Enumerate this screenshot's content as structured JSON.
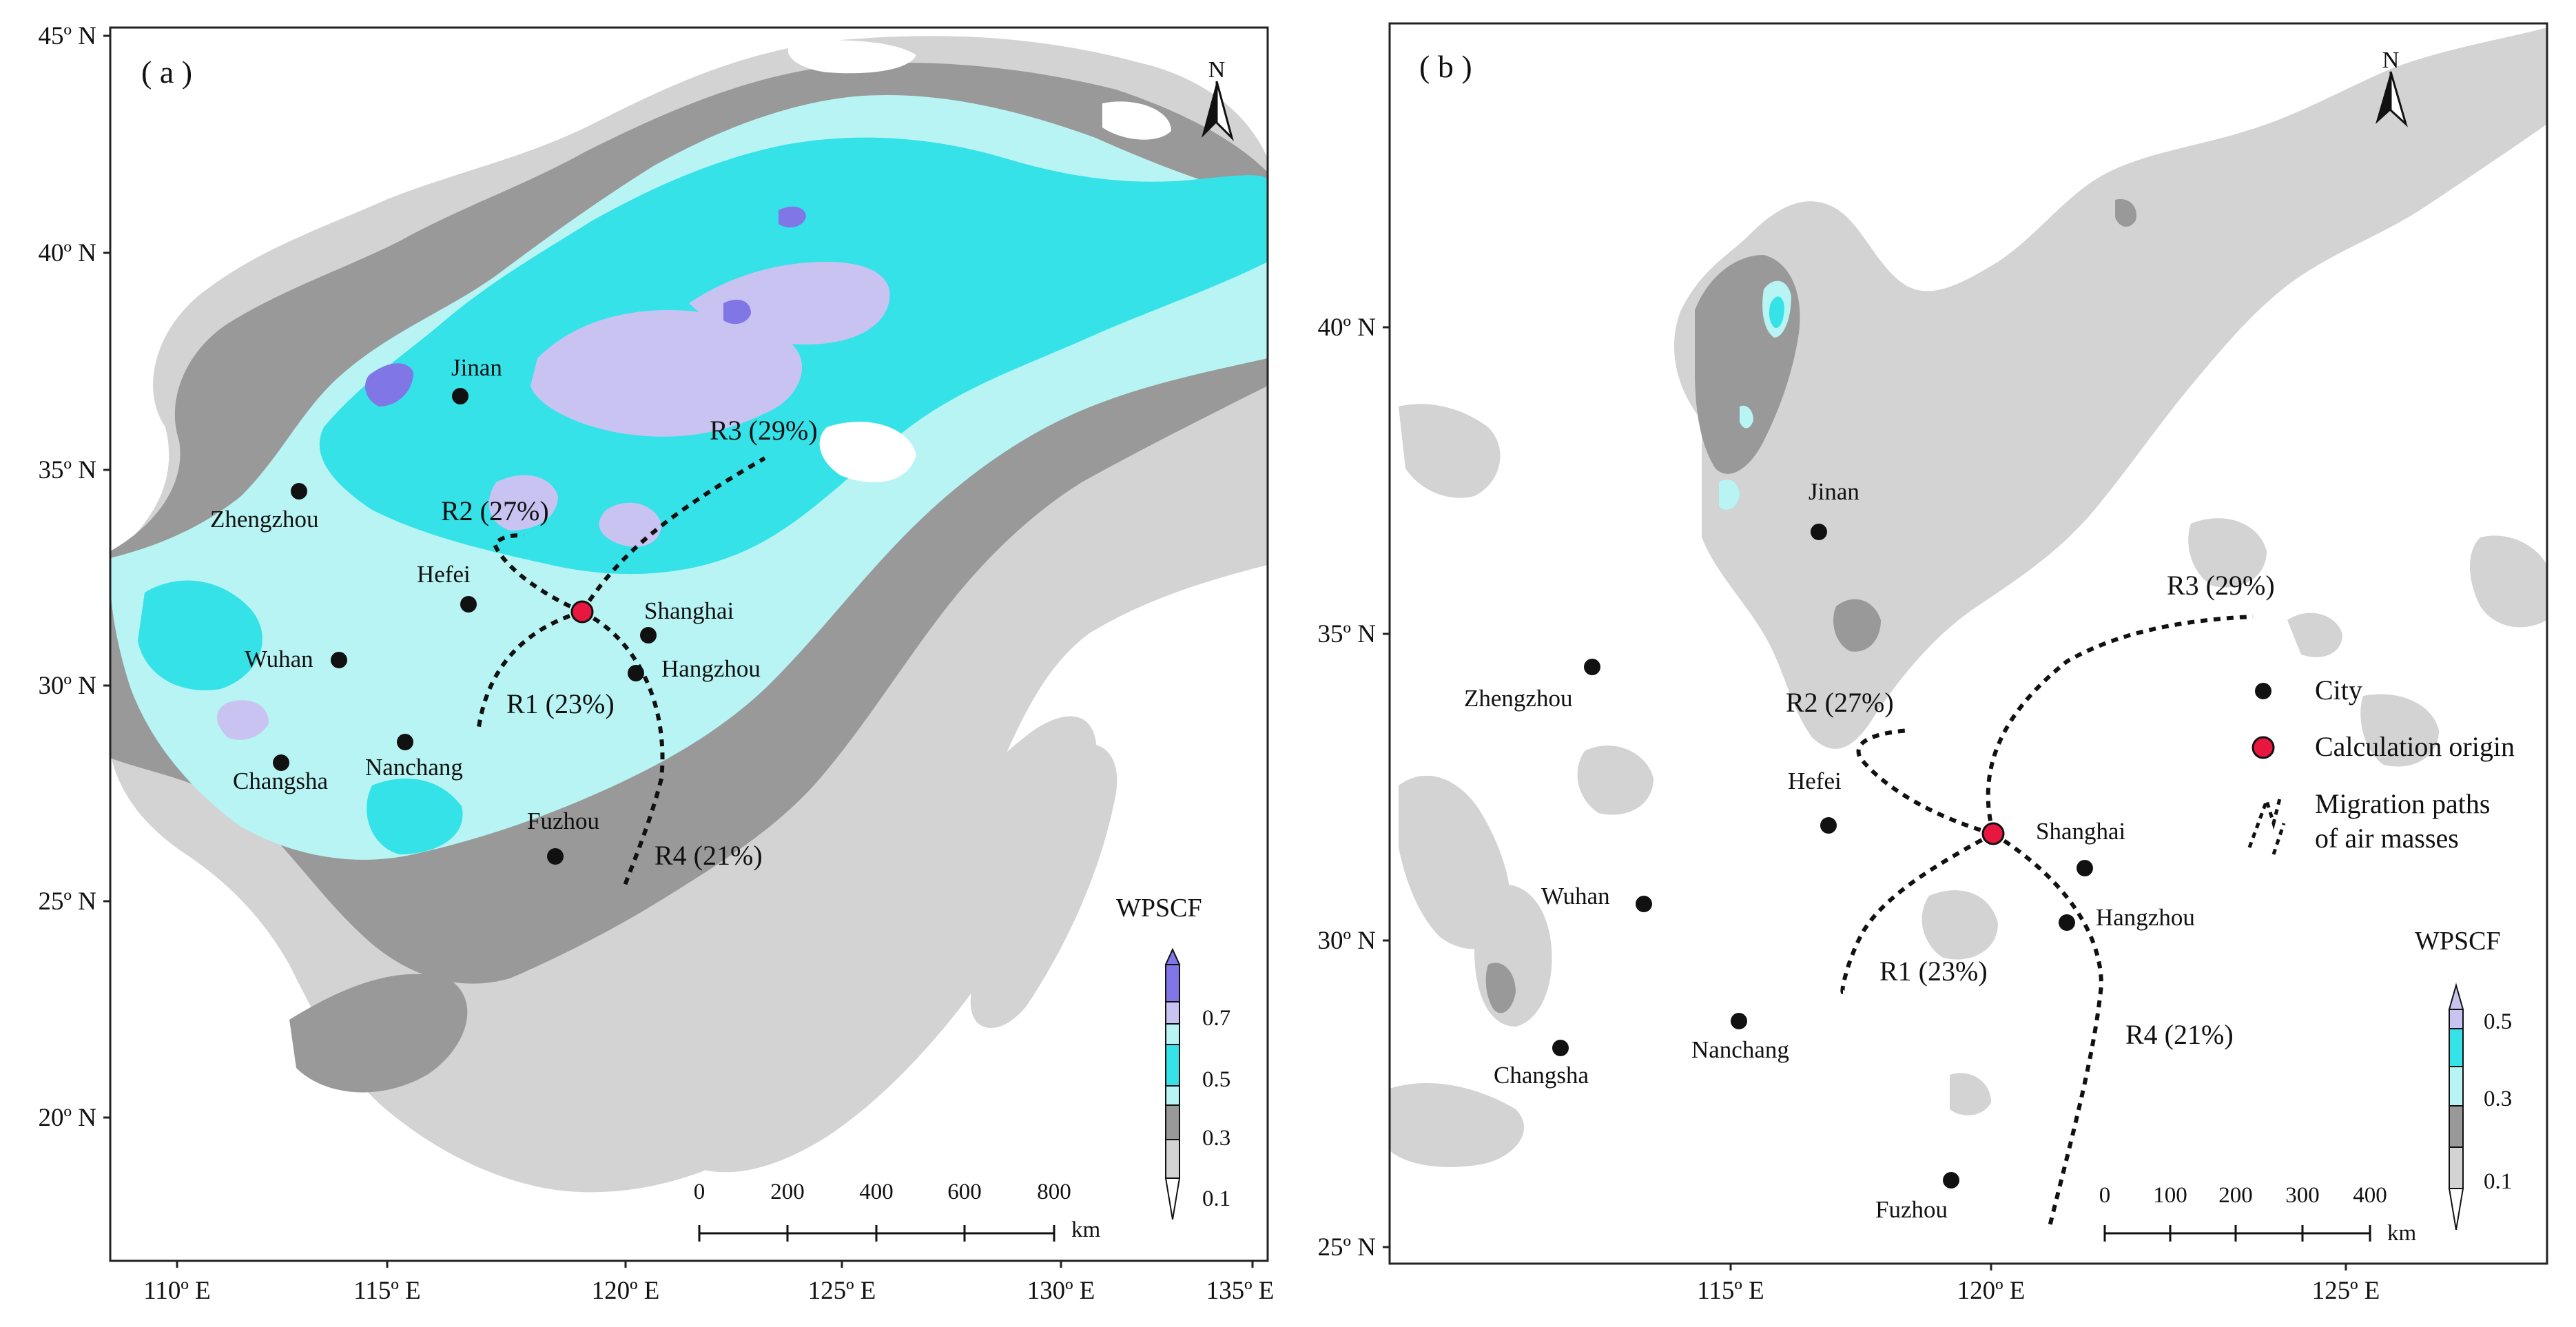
{
  "panel_a": {
    "tag": "( a )",
    "lat_labels": [
      "45º N",
      "40º N",
      "35º N",
      "30º N",
      "25º N",
      "20º N"
    ],
    "lon_labels": [
      "110º E",
      "115º E",
      "120º E",
      "125º E",
      "130º E",
      "135º E"
    ],
    "cities": [
      "Jinan",
      "Zhengzhou",
      "Hefei",
      "Shanghai",
      "Wuhan",
      "Hangzhou",
      "Nanchang",
      "Changsha",
      "Fuzhou"
    ],
    "routes": [
      "R3 (29%)",
      "R2 (27%)",
      "R1 (23%)",
      "R4 (21%)"
    ],
    "legend_title": "WPSCF",
    "legend_ticks": [
      "0.7",
      "0.5",
      "0.3",
      "0.1"
    ],
    "scale_ticks": [
      "0",
      "200",
      "400",
      "600",
      "800"
    ],
    "scale_unit": "km",
    "north": "N"
  },
  "panel_b": {
    "tag": "( b )",
    "lat_labels": [
      "40º N",
      "35º N",
      "30º N",
      "25º N"
    ],
    "lon_labels": [
      "115º E",
      "120º E",
      "125º E"
    ],
    "cities": [
      "Jinan",
      "Zhengzhou",
      "Hefei",
      "Shanghai",
      "Wuhan",
      "Hangzhou",
      "Nanchang",
      "Changsha",
      "Fuzhou"
    ],
    "routes": [
      "R3 (29%)",
      "R2 (27%)",
      "R1 (23%)",
      "R4 (21%)"
    ],
    "legend_title": "WPSCF",
    "legend_ticks": [
      "0.5",
      "0.3",
      "0.1"
    ],
    "scale_ticks": [
      "0",
      "100",
      "200",
      "300",
      "400"
    ],
    "scale_unit": "km",
    "north": "N",
    "key": {
      "city": "City",
      "origin": "Calculation origin",
      "paths_line1": "Migration paths",
      "paths_line2": "of air masses"
    }
  },
  "colors": {
    "c_01_03": "#d3d3d3",
    "c_03_04": "#999999",
    "c_04_05": "#b8f4f4",
    "c_05_06": "#35e2e8",
    "c_06_07": "#c9c3f2",
    "c_07_up": "#8176e6",
    "origin": "#e8173f"
  }
}
